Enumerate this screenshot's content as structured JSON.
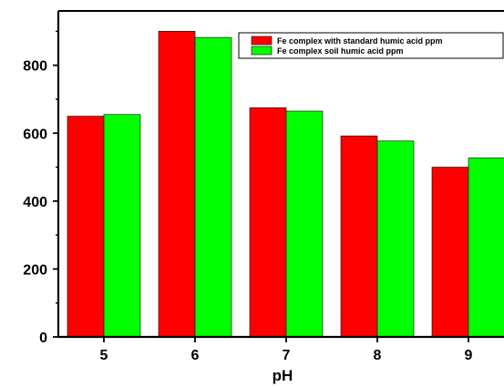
{
  "chart_data": {
    "type": "bar",
    "categories": [
      "5",
      "6",
      "7",
      "8",
      "9"
    ],
    "series": [
      {
        "name": "Fe complex with standard humic acid ppm",
        "color": "#ff0000",
        "values": [
          650,
          900,
          675,
          592,
          500
        ]
      },
      {
        "name": "Fe complex soil humic acid ppm",
        "color": "#00ff00",
        "values": [
          655,
          882,
          665,
          577,
          527
        ]
      }
    ],
    "title": "",
    "xlabel": "pH",
    "ylabel": "",
    "ylim": [
      0,
      960
    ],
    "yticks": [
      0,
      200,
      400,
      600,
      800
    ],
    "grid": false,
    "legend_position": "top-right"
  }
}
